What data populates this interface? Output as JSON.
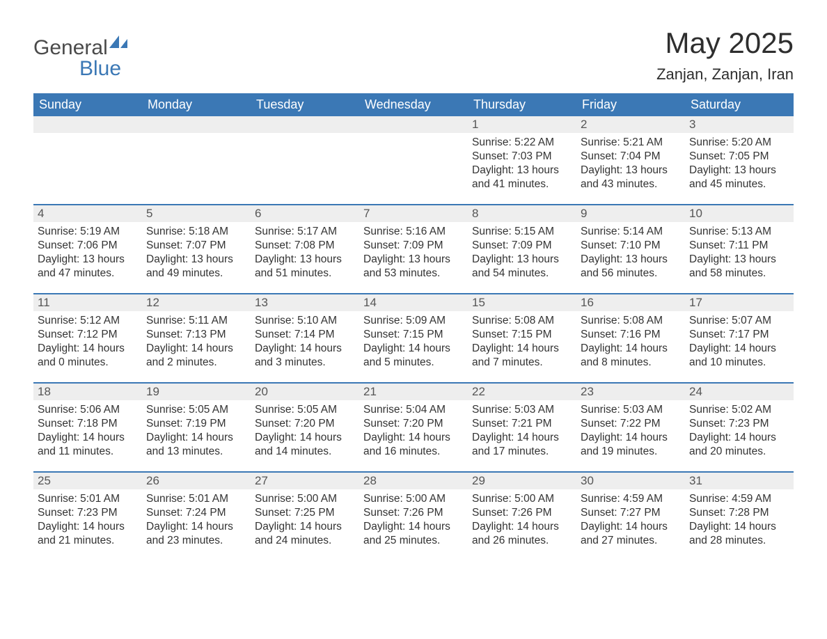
{
  "brand": {
    "word1": "General",
    "word2": "Blue",
    "color_primary": "#3b78b5",
    "color_text": "#4a4a4a"
  },
  "title": {
    "month": "May 2025",
    "location": "Zanjan, Zanjan, Iran",
    "title_fontsize": 42,
    "location_fontsize": 22
  },
  "styling": {
    "header_bg": "#3b78b5",
    "header_text": "#ffffff",
    "daynum_bg": "#eeeeee",
    "daynum_text": "#555555",
    "body_text": "#333333",
    "row_border": "#3b78b5",
    "background": "#ffffff",
    "cell_fontsize": 15.5,
    "weekday_fontsize": 18,
    "columns": 7
  },
  "weekdays": [
    "Sunday",
    "Monday",
    "Tuesday",
    "Wednesday",
    "Thursday",
    "Friday",
    "Saturday"
  ],
  "weeks": [
    [
      {
        "empty": true
      },
      {
        "empty": true
      },
      {
        "empty": true
      },
      {
        "empty": true
      },
      {
        "day": "1",
        "sunrise": "Sunrise: 5:22 AM",
        "sunset": "Sunset: 7:03 PM",
        "daylight": "Daylight: 13 hours and 41 minutes."
      },
      {
        "day": "2",
        "sunrise": "Sunrise: 5:21 AM",
        "sunset": "Sunset: 7:04 PM",
        "daylight": "Daylight: 13 hours and 43 minutes."
      },
      {
        "day": "3",
        "sunrise": "Sunrise: 5:20 AM",
        "sunset": "Sunset: 7:05 PM",
        "daylight": "Daylight: 13 hours and 45 minutes."
      }
    ],
    [
      {
        "day": "4",
        "sunrise": "Sunrise: 5:19 AM",
        "sunset": "Sunset: 7:06 PM",
        "daylight": "Daylight: 13 hours and 47 minutes."
      },
      {
        "day": "5",
        "sunrise": "Sunrise: 5:18 AM",
        "sunset": "Sunset: 7:07 PM",
        "daylight": "Daylight: 13 hours and 49 minutes."
      },
      {
        "day": "6",
        "sunrise": "Sunrise: 5:17 AM",
        "sunset": "Sunset: 7:08 PM",
        "daylight": "Daylight: 13 hours and 51 minutes."
      },
      {
        "day": "7",
        "sunrise": "Sunrise: 5:16 AM",
        "sunset": "Sunset: 7:09 PM",
        "daylight": "Daylight: 13 hours and 53 minutes."
      },
      {
        "day": "8",
        "sunrise": "Sunrise: 5:15 AM",
        "sunset": "Sunset: 7:09 PM",
        "daylight": "Daylight: 13 hours and 54 minutes."
      },
      {
        "day": "9",
        "sunrise": "Sunrise: 5:14 AM",
        "sunset": "Sunset: 7:10 PM",
        "daylight": "Daylight: 13 hours and 56 minutes."
      },
      {
        "day": "10",
        "sunrise": "Sunrise: 5:13 AM",
        "sunset": "Sunset: 7:11 PM",
        "daylight": "Daylight: 13 hours and 58 minutes."
      }
    ],
    [
      {
        "day": "11",
        "sunrise": "Sunrise: 5:12 AM",
        "sunset": "Sunset: 7:12 PM",
        "daylight": "Daylight: 14 hours and 0 minutes."
      },
      {
        "day": "12",
        "sunrise": "Sunrise: 5:11 AM",
        "sunset": "Sunset: 7:13 PM",
        "daylight": "Daylight: 14 hours and 2 minutes."
      },
      {
        "day": "13",
        "sunrise": "Sunrise: 5:10 AM",
        "sunset": "Sunset: 7:14 PM",
        "daylight": "Daylight: 14 hours and 3 minutes."
      },
      {
        "day": "14",
        "sunrise": "Sunrise: 5:09 AM",
        "sunset": "Sunset: 7:15 PM",
        "daylight": "Daylight: 14 hours and 5 minutes."
      },
      {
        "day": "15",
        "sunrise": "Sunrise: 5:08 AM",
        "sunset": "Sunset: 7:15 PM",
        "daylight": "Daylight: 14 hours and 7 minutes."
      },
      {
        "day": "16",
        "sunrise": "Sunrise: 5:08 AM",
        "sunset": "Sunset: 7:16 PM",
        "daylight": "Daylight: 14 hours and 8 minutes."
      },
      {
        "day": "17",
        "sunrise": "Sunrise: 5:07 AM",
        "sunset": "Sunset: 7:17 PM",
        "daylight": "Daylight: 14 hours and 10 minutes."
      }
    ],
    [
      {
        "day": "18",
        "sunrise": "Sunrise: 5:06 AM",
        "sunset": "Sunset: 7:18 PM",
        "daylight": "Daylight: 14 hours and 11 minutes."
      },
      {
        "day": "19",
        "sunrise": "Sunrise: 5:05 AM",
        "sunset": "Sunset: 7:19 PM",
        "daylight": "Daylight: 14 hours and 13 minutes."
      },
      {
        "day": "20",
        "sunrise": "Sunrise: 5:05 AM",
        "sunset": "Sunset: 7:20 PM",
        "daylight": "Daylight: 14 hours and 14 minutes."
      },
      {
        "day": "21",
        "sunrise": "Sunrise: 5:04 AM",
        "sunset": "Sunset: 7:20 PM",
        "daylight": "Daylight: 14 hours and 16 minutes."
      },
      {
        "day": "22",
        "sunrise": "Sunrise: 5:03 AM",
        "sunset": "Sunset: 7:21 PM",
        "daylight": "Daylight: 14 hours and 17 minutes."
      },
      {
        "day": "23",
        "sunrise": "Sunrise: 5:03 AM",
        "sunset": "Sunset: 7:22 PM",
        "daylight": "Daylight: 14 hours and 19 minutes."
      },
      {
        "day": "24",
        "sunrise": "Sunrise: 5:02 AM",
        "sunset": "Sunset: 7:23 PM",
        "daylight": "Daylight: 14 hours and 20 minutes."
      }
    ],
    [
      {
        "day": "25",
        "sunrise": "Sunrise: 5:01 AM",
        "sunset": "Sunset: 7:23 PM",
        "daylight": "Daylight: 14 hours and 21 minutes."
      },
      {
        "day": "26",
        "sunrise": "Sunrise: 5:01 AM",
        "sunset": "Sunset: 7:24 PM",
        "daylight": "Daylight: 14 hours and 23 minutes."
      },
      {
        "day": "27",
        "sunrise": "Sunrise: 5:00 AM",
        "sunset": "Sunset: 7:25 PM",
        "daylight": "Daylight: 14 hours and 24 minutes."
      },
      {
        "day": "28",
        "sunrise": "Sunrise: 5:00 AM",
        "sunset": "Sunset: 7:26 PM",
        "daylight": "Daylight: 14 hours and 25 minutes."
      },
      {
        "day": "29",
        "sunrise": "Sunrise: 5:00 AM",
        "sunset": "Sunset: 7:26 PM",
        "daylight": "Daylight: 14 hours and 26 minutes."
      },
      {
        "day": "30",
        "sunrise": "Sunrise: 4:59 AM",
        "sunset": "Sunset: 7:27 PM",
        "daylight": "Daylight: 14 hours and 27 minutes."
      },
      {
        "day": "31",
        "sunrise": "Sunrise: 4:59 AM",
        "sunset": "Sunset: 7:28 PM",
        "daylight": "Daylight: 14 hours and 28 minutes."
      }
    ]
  ]
}
